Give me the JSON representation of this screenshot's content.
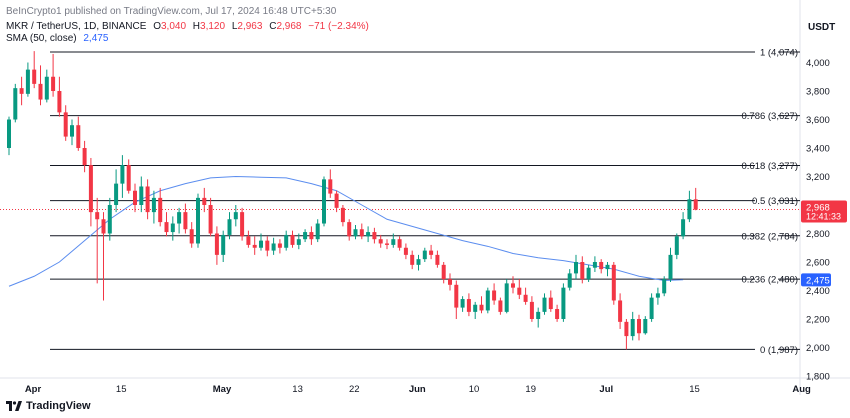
{
  "header": {
    "publisher_line": "BeInCrypto1 published on TradingView.com, Jul 17, 2024 16:48 UTC+5:30",
    "symbol": "MKR / TetherUS, 1D, BINANCE",
    "o_label": "O",
    "o_value": "3,040",
    "h_label": "H",
    "h_value": "3,120",
    "l_label": "L",
    "l_value": "2,963",
    "c_label": "C",
    "c_value": "2,968",
    "change": "−71 (−2.34%)",
    "sma_label": "SMA (50, close)",
    "sma_value": "2,475"
  },
  "currency": "USDT",
  "footer": {
    "brand": "TradingView"
  },
  "colors": {
    "up": "#089981",
    "down": "#f23645",
    "sma": "#5b8def",
    "price_tag": "#f23645",
    "sma_tag": "#2962ff"
  },
  "chart_data": {
    "type": "candlestick",
    "title": "MKR / TetherUS, 1D, BINANCE",
    "ylim": [
      1800,
      4200
    ],
    "y_ticks": [
      {
        "v": 4000,
        "label": "4,000"
      },
      {
        "v": 3800,
        "label": "3,800"
      },
      {
        "v": 3600,
        "label": "3,600"
      },
      {
        "v": 3400,
        "label": "3,400"
      },
      {
        "v": 3200,
        "label": "3,200"
      },
      {
        "v": 3000,
        "label": "3,000"
      },
      {
        "v": 2800,
        "label": "2,800"
      },
      {
        "v": 2600,
        "label": "2,600"
      },
      {
        "v": 2400,
        "label": "2,400"
      },
      {
        "v": 2200,
        "label": "2,200"
      },
      {
        "v": 2000,
        "label": "2,000"
      },
      {
        "v": 1800,
        "label": "1,800"
      }
    ],
    "x_ticks": [
      {
        "day": 0,
        "label": "Apr",
        "bold": true
      },
      {
        "day": 14,
        "label": "15",
        "bold": false
      },
      {
        "day": 30,
        "label": "May",
        "bold": true
      },
      {
        "day": 42,
        "label": "13",
        "bold": false
      },
      {
        "day": 51,
        "label": "22",
        "bold": false
      },
      {
        "day": 61,
        "label": "Jun",
        "bold": true
      },
      {
        "day": 70,
        "label": "10",
        "bold": false
      },
      {
        "day": 79,
        "label": "19",
        "bold": false
      },
      {
        "day": 91,
        "label": "Jul",
        "bold": true
      },
      {
        "day": 105,
        "label": "15",
        "bold": false
      },
      {
        "day": 122,
        "label": "Aug",
        "bold": true
      }
    ],
    "fib_levels": [
      {
        "value": 4074,
        "label": "1 (4,074)"
      },
      {
        "value": 3627,
        "label": "0.786 (3,627)"
      },
      {
        "value": 3277,
        "label": "0.618 (3,277)"
      },
      {
        "value": 3031,
        "label": "0.5 (3,031)"
      },
      {
        "value": 2784,
        "label": "0.382 (2,784)"
      },
      {
        "value": 2480,
        "label": "0.236 (2,480)"
      },
      {
        "value": 1987,
        "label": "0 (1,987)"
      }
    ],
    "last_price": {
      "value": 2968,
      "label": "2,968",
      "countdown": "12:41:33"
    },
    "sma_tag": {
      "value": 2475,
      "label": "2,475"
    },
    "candles": [
      [
        3400,
        3620,
        3350,
        3600
      ],
      [
        3600,
        3850,
        3580,
        3820
      ],
      [
        3820,
        3900,
        3700,
        3780
      ],
      [
        3780,
        4000,
        3760,
        3950
      ],
      [
        3950,
        4080,
        3820,
        3850
      ],
      [
        3850,
        3980,
        3700,
        3740
      ],
      [
        3740,
        3950,
        3720,
        3900
      ],
      [
        3900,
        4060,
        3760,
        3800
      ],
      [
        3800,
        3900,
        3620,
        3650
      ],
      [
        3650,
        3700,
        3450,
        3480
      ],
      [
        3480,
        3600,
        3420,
        3560
      ],
      [
        3560,
        3620,
        3380,
        3400
      ],
      [
        3400,
        3450,
        3230,
        3280
      ],
      [
        3280,
        3330,
        2850,
        2950
      ],
      [
        2950,
        3050,
        2450,
        2900
      ],
      [
        2900,
        2950,
        2330,
        2800
      ],
      [
        2800,
        3050,
        2750,
        3000
      ],
      [
        3000,
        3250,
        2950,
        3150
      ],
      [
        3150,
        3350,
        3050,
        3280
      ],
      [
        3280,
        3320,
        3080,
        3100
      ],
      [
        3100,
        3150,
        2950,
        3000
      ],
      [
        3000,
        3200,
        2950,
        3130
      ],
      [
        3130,
        3180,
        2900,
        2950
      ],
      [
        2950,
        3100,
        2870,
        3050
      ],
      [
        3050,
        3120,
        2850,
        2880
      ],
      [
        2880,
        2950,
        2780,
        2810
      ],
      [
        2810,
        2920,
        2750,
        2870
      ],
      [
        2870,
        2980,
        2800,
        2950
      ],
      [
        2950,
        3010,
        2800,
        2830
      ],
      [
        2830,
        2880,
        2700,
        2730
      ],
      [
        2730,
        3080,
        2700,
        3050
      ],
      [
        3050,
        3120,
        2950,
        3000
      ],
      [
        3000,
        3050,
        2780,
        2800
      ],
      [
        2800,
        2850,
        2580,
        2650
      ],
      [
        2650,
        2820,
        2600,
        2790
      ],
      [
        2790,
        2950,
        2760,
        2900
      ],
      [
        2900,
        3000,
        2850,
        2950
      ],
      [
        2950,
        2980,
        2750,
        2780
      ],
      [
        2780,
        2820,
        2700,
        2720
      ],
      [
        2720,
        2780,
        2650,
        2700
      ],
      [
        2700,
        2800,
        2680,
        2750
      ],
      [
        2750,
        2780,
        2640,
        2680
      ],
      [
        2680,
        2770,
        2650,
        2730
      ],
      [
        2730,
        2760,
        2660,
        2700
      ],
      [
        2700,
        2820,
        2680,
        2790
      ],
      [
        2790,
        2820,
        2700,
        2720
      ],
      [
        2720,
        2800,
        2690,
        2760
      ],
      [
        2760,
        2830,
        2740,
        2810
      ],
      [
        2810,
        2850,
        2720,
        2760
      ],
      [
        2760,
        2900,
        2740,
        2870
      ],
      [
        2870,
        3200,
        2850,
        3180
      ],
      [
        3180,
        3250,
        3050,
        3080
      ],
      [
        3080,
        3100,
        2950,
        2980
      ],
      [
        2980,
        3000,
        2850,
        2880
      ],
      [
        2880,
        2900,
        2750,
        2780
      ],
      [
        2780,
        2860,
        2760,
        2830
      ],
      [
        2830,
        2870,
        2760,
        2780
      ],
      [
        2780,
        2850,
        2740,
        2810
      ],
      [
        2810,
        2840,
        2730,
        2760
      ],
      [
        2760,
        2790,
        2700,
        2730
      ],
      [
        2730,
        2760,
        2690,
        2720
      ],
      [
        2720,
        2800,
        2700,
        2760
      ],
      [
        2760,
        2780,
        2680,
        2700
      ],
      [
        2700,
        2730,
        2620,
        2650
      ],
      [
        2650,
        2680,
        2550,
        2580
      ],
      [
        2580,
        2650,
        2540,
        2620
      ],
      [
        2620,
        2700,
        2600,
        2680
      ],
      [
        2680,
        2720,
        2620,
        2650
      ],
      [
        2650,
        2680,
        2560,
        2580
      ],
      [
        2580,
        2600,
        2450,
        2480
      ],
      [
        2480,
        2520,
        2400,
        2440
      ],
      [
        2440,
        2470,
        2200,
        2280
      ],
      [
        2280,
        2360,
        2250,
        2340
      ],
      [
        2340,
        2380,
        2220,
        2250
      ],
      [
        2250,
        2320,
        2200,
        2300
      ],
      [
        2300,
        2360,
        2240,
        2260
      ],
      [
        2260,
        2420,
        2240,
        2400
      ],
      [
        2400,
        2450,
        2300,
        2330
      ],
      [
        2330,
        2350,
        2230,
        2250
      ],
      [
        2250,
        2480,
        2240,
        2450
      ],
      [
        2450,
        2500,
        2380,
        2420
      ],
      [
        2420,
        2480,
        2340,
        2370
      ],
      [
        2370,
        2420,
        2300,
        2320
      ],
      [
        2320,
        2360,
        2180,
        2200
      ],
      [
        2200,
        2280,
        2140,
        2250
      ],
      [
        2250,
        2380,
        2230,
        2350
      ],
      [
        2350,
        2400,
        2250,
        2270
      ],
      [
        2270,
        2300,
        2180,
        2200
      ],
      [
        2200,
        2450,
        2180,
        2420
      ],
      [
        2420,
        2550,
        2400,
        2520
      ],
      [
        2520,
        2650,
        2480,
        2600
      ],
      [
        2600,
        2640,
        2450,
        2480
      ],
      [
        2480,
        2580,
        2460,
        2560
      ],
      [
        2560,
        2640,
        2530,
        2600
      ],
      [
        2600,
        2620,
        2520,
        2550
      ],
      [
        2550,
        2600,
        2500,
        2580
      ],
      [
        2580,
        2600,
        2300,
        2330
      ],
      [
        2330,
        2380,
        2130,
        2180
      ],
      [
        2180,
        2200,
        1987,
        2080
      ],
      [
        2080,
        2250,
        2050,
        2200
      ],
      [
        2200,
        2230,
        2050,
        2100
      ],
      [
        2100,
        2220,
        2090,
        2200
      ],
      [
        2200,
        2380,
        2180,
        2350
      ],
      [
        2350,
        2420,
        2300,
        2380
      ],
      [
        2380,
        2500,
        2360,
        2480
      ],
      [
        2480,
        2700,
        2460,
        2650
      ],
      [
        2650,
        2800,
        2620,
        2780
      ],
      [
        2780,
        2950,
        2760,
        2900
      ],
      [
        2900,
        3100,
        2880,
        3040
      ],
      [
        3040,
        3120,
        2963,
        2968
      ]
    ],
    "sma50": [
      [
        0,
        2430
      ],
      [
        4,
        2500
      ],
      [
        8,
        2600
      ],
      [
        12,
        2750
      ],
      [
        16,
        2900
      ],
      [
        20,
        3020
      ],
      [
        24,
        3100
      ],
      [
        28,
        3150
      ],
      [
        32,
        3190
      ],
      [
        36,
        3200
      ],
      [
        40,
        3195
      ],
      [
        44,
        3190
      ],
      [
        48,
        3150
      ],
      [
        52,
        3100
      ],
      [
        56,
        3000
      ],
      [
        60,
        2900
      ],
      [
        64,
        2850
      ],
      [
        68,
        2800
      ],
      [
        72,
        2750
      ],
      [
        76,
        2710
      ],
      [
        80,
        2660
      ],
      [
        84,
        2630
      ],
      [
        88,
        2610
      ],
      [
        92,
        2580
      ],
      [
        96,
        2550
      ],
      [
        100,
        2500
      ],
      [
        104,
        2470
      ],
      [
        107,
        2475
      ]
    ]
  }
}
